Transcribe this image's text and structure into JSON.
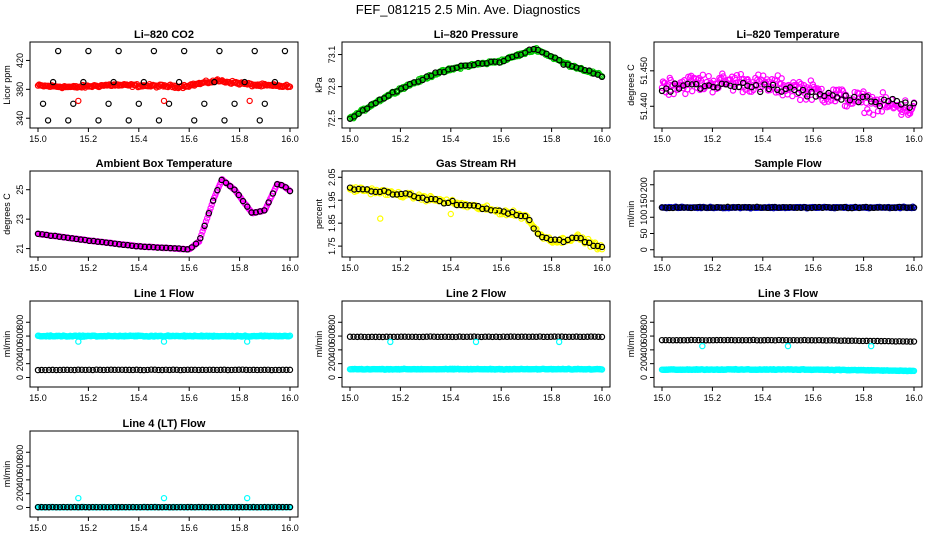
{
  "figure": {
    "title": "FEF_081215  2.5 Min. Ave. Diagnostics"
  },
  "chart_data": [
    {
      "id": "co2",
      "type": "scatter",
      "title": "Li–820 CO2",
      "ylabel": "Licor ppm",
      "xlim": [
        15.0,
        16.0
      ],
      "ylim": [
        332,
        440
      ],
      "xticks": [
        15.0,
        15.2,
        15.4,
        15.6,
        15.8,
        16.0
      ],
      "xtick_labels": [
        "15.0",
        "15.2",
        "15.4",
        "15.6",
        "15.8",
        "16.0"
      ],
      "yticks": [
        340,
        380,
        420
      ],
      "ytick_labels": [
        "340",
        "380",
        "420"
      ],
      "grid": false,
      "series": [
        {
          "color": "#ff0000",
          "style": "band",
          "dense": true,
          "y_from": [
            385,
            383,
            386,
            385,
            384,
            392,
            386,
            384
          ],
          "jitter": 3
        },
        {
          "color": "#000000",
          "style": "points",
          "x": [
            15.08,
            15.2,
            15.32,
            15.46,
            15.58,
            15.72,
            15.86,
            15.98,
            15.06,
            15.18,
            15.3,
            15.42,
            15.56,
            15.7,
            15.82,
            15.94,
            15.02,
            15.14,
            15.28,
            15.4,
            15.52,
            15.66,
            15.78,
            15.9,
            15.04,
            15.12,
            15.24,
            15.36,
            15.48,
            15.62,
            15.74,
            15.88
          ],
          "y": [
            433,
            433,
            433,
            433,
            433,
            433,
            433,
            433,
            390,
            390,
            390,
            390,
            390,
            390,
            390,
            390,
            360,
            360,
            360,
            360,
            360,
            360,
            360,
            360,
            337,
            337,
            337,
            337,
            337,
            337,
            337,
            337
          ]
        },
        {
          "color": "#ff0000",
          "style": "points",
          "x": [
            15.16,
            15.5,
            15.84
          ],
          "y": [
            364,
            364,
            364
          ]
        }
      ]
    },
    {
      "id": "pressure",
      "type": "scatter",
      "title": "Li–820 Pressure",
      "ylabel": "kPa",
      "xlim": [
        15.0,
        16.0
      ],
      "ylim": [
        72.45,
        73.18
      ],
      "xticks": [
        15.0,
        15.2,
        15.4,
        15.6,
        15.8,
        16.0
      ],
      "xtick_labels": [
        "15.0",
        "15.2",
        "15.4",
        "15.6",
        "15.8",
        "16.0"
      ],
      "yticks": [
        72.5,
        72.8,
        73.1
      ],
      "ytick_labels": [
        "72.5",
        "72.8",
        "73.1"
      ],
      "grid": false,
      "series": [
        {
          "color": "#00cc00",
          "style": "band",
          "dense": true,
          "x_knots": [
            15.0,
            15.1,
            15.2,
            15.35,
            15.45,
            15.6,
            15.7,
            15.74,
            15.85,
            16.0
          ],
          "y_knots": [
            72.5,
            72.65,
            72.78,
            72.93,
            72.99,
            73.04,
            73.12,
            73.15,
            73.02,
            72.9
          ],
          "jitter": 0.02
        },
        {
          "color": "#000000",
          "style": "sampled",
          "count": 60,
          "x_knots": [
            15.0,
            15.1,
            15.2,
            15.35,
            15.45,
            15.6,
            15.7,
            15.74,
            15.85,
            16.0
          ],
          "y_knots": [
            72.5,
            72.65,
            72.78,
            72.93,
            72.99,
            73.04,
            73.12,
            73.15,
            73.02,
            72.9
          ],
          "jitter": 0.02
        }
      ]
    },
    {
      "id": "licor_temp",
      "type": "scatter",
      "title": "Li–820 Temperature",
      "ylabel": "degrees C",
      "xlim": [
        15.0,
        16.0
      ],
      "ylim": [
        51.435,
        51.457
      ],
      "xticks": [
        15.0,
        15.2,
        15.4,
        15.6,
        15.8,
        16.0
      ],
      "xtick_labels": [
        "15.0",
        "15.2",
        "15.4",
        "15.6",
        "15.8",
        "16.0"
      ],
      "yticks": [
        51.44,
        51.45
      ],
      "ytick_labels": [
        "51.440",
        "51.450"
      ],
      "grid": false,
      "series": [
        {
          "color": "#ff00ff",
          "style": "band",
          "dense": true,
          "count": 260,
          "x_knots": [
            15.0,
            15.3,
            15.55,
            15.75,
            16.0
          ],
          "y_knots": [
            51.446,
            51.447,
            51.445,
            51.442,
            51.439
          ],
          "jitter": 0.004
        },
        {
          "color": "#000000",
          "style": "sampled",
          "count": 60,
          "x_knots": [
            15.0,
            15.3,
            15.55,
            15.75,
            16.0
          ],
          "y_knots": [
            51.445,
            51.446,
            51.444,
            51.442,
            51.44
          ],
          "jitter": 0.002
        }
      ]
    },
    {
      "id": "box_temp",
      "type": "scatter",
      "title": "Ambient Box Temperature",
      "ylabel": "degrees C",
      "xlim": [
        15.0,
        16.0
      ],
      "ylim": [
        20.7,
        26.0
      ],
      "xticks": [
        15.0,
        15.2,
        15.4,
        15.6,
        15.8,
        16.0
      ],
      "xtick_labels": [
        "15.0",
        "15.2",
        "15.4",
        "15.6",
        "15.8",
        "16.0"
      ],
      "yticks": [
        21,
        23,
        25
      ],
      "ytick_labels": [
        "21",
        "23",
        "25"
      ],
      "grid": false,
      "series": [
        {
          "color": "#ff00ff",
          "style": "band",
          "dense": true,
          "x_knots": [
            15.0,
            15.2,
            15.4,
            15.6,
            15.64,
            15.7,
            15.73,
            15.78,
            15.85,
            15.9,
            15.95,
            15.98,
            16.0
          ],
          "y_knots": [
            22.0,
            21.55,
            21.15,
            20.95,
            21.5,
            24.5,
            25.7,
            25.0,
            23.4,
            23.6,
            25.4,
            25.2,
            24.9
          ],
          "jitter": 0.03
        },
        {
          "color": "#000000",
          "style": "sampled",
          "count": 60,
          "x_knots": [
            15.0,
            15.2,
            15.4,
            15.6,
            15.64,
            15.7,
            15.73,
            15.78,
            15.85,
            15.9,
            15.95,
            15.98,
            16.0
          ],
          "y_knots": [
            22.0,
            21.55,
            21.15,
            20.95,
            21.5,
            24.5,
            25.7,
            25.0,
            23.4,
            23.6,
            25.4,
            25.2,
            24.9
          ],
          "jitter": 0.03
        }
      ]
    },
    {
      "id": "rh",
      "type": "scatter",
      "title": "Gas Stream RH",
      "ylabel": "percent",
      "xlim": [
        15.0,
        16.0
      ],
      "ylim": [
        1.72,
        2.06
      ],
      "xticks": [
        15.0,
        15.2,
        15.4,
        15.6,
        15.8,
        16.0
      ],
      "xtick_labels": [
        "15.0",
        "15.2",
        "15.4",
        "15.6",
        "15.8",
        "16.0"
      ],
      "yticks": [
        1.75,
        1.85,
        1.95,
        2.05
      ],
      "ytick_labels": [
        "1.75",
        "1.85",
        "1.95",
        "2.05"
      ],
      "grid": false,
      "series": [
        {
          "color": "#ffff00",
          "style": "band",
          "dense": true,
          "x_knots": [
            15.0,
            15.1,
            15.3,
            15.5,
            15.7,
            15.75,
            15.82,
            15.9,
            16.0
          ],
          "y_knots": [
            2.0,
            1.99,
            1.96,
            1.92,
            1.88,
            1.8,
            1.77,
            1.79,
            1.74
          ],
          "jitter": 0.018
        },
        {
          "color": "#000000",
          "style": "sampled",
          "count": 60,
          "x_knots": [
            15.0,
            15.1,
            15.3,
            15.5,
            15.7,
            15.75,
            15.82,
            15.9,
            16.0
          ],
          "y_knots": [
            2.0,
            1.99,
            1.96,
            1.92,
            1.88,
            1.8,
            1.77,
            1.79,
            1.74
          ],
          "jitter": 0.012
        },
        {
          "color": "#ffff00",
          "style": "points",
          "x": [
            15.12,
            15.4,
            15.58
          ],
          "y": [
            1.87,
            1.89,
            1.9
          ]
        }
      ]
    },
    {
      "id": "sample_flow",
      "type": "scatter",
      "title": "Sample Flow",
      "ylabel": "ml/min",
      "xlim": [
        15.0,
        16.0
      ],
      "ylim": [
        -10,
        230
      ],
      "xticks": [
        15.0,
        15.2,
        15.4,
        15.6,
        15.8,
        16.0
      ],
      "xtick_labels": [
        "15.0",
        "15.2",
        "15.4",
        "15.6",
        "15.8",
        "16.0"
      ],
      "yticks": [
        0,
        50,
        100,
        150,
        200
      ],
      "ytick_labels": [
        "0",
        "50",
        "100",
        "150",
        "200"
      ],
      "grid": false,
      "series": [
        {
          "color": "#0000cc",
          "style": "band",
          "dense": true,
          "x_knots": [
            15.0,
            16.0
          ],
          "y_knots": [
            130,
            130
          ],
          "jitter": 3
        },
        {
          "color": "#000000",
          "style": "sampled",
          "count": 70,
          "x_knots": [
            15.0,
            16.0
          ],
          "y_knots": [
            130,
            130
          ],
          "jitter": 3
        }
      ]
    },
    {
      "id": "line1",
      "type": "scatter",
      "title": "Line 1 Flow",
      "ylabel": "ml/min",
      "xlim": [
        15.0,
        16.0
      ],
      "ylim": [
        -80,
        1050
      ],
      "xticks": [
        15.0,
        15.2,
        15.4,
        15.6,
        15.8,
        16.0
      ],
      "xtick_labels": [
        "15.0",
        "15.2",
        "15.4",
        "15.6",
        "15.8",
        "16.0"
      ],
      "yticks": [
        0,
        200,
        400,
        600,
        800
      ],
      "ytick_labels": [
        "0",
        "200",
        "400",
        "600",
        "800"
      ],
      "grid": false,
      "series": [
        {
          "color": "#00ffff",
          "style": "band",
          "dense": true,
          "x_knots": [
            15.0,
            16.0
          ],
          "y_knots": [
            600,
            600
          ],
          "jitter": 12
        },
        {
          "color": "#000000",
          "style": "sampled",
          "count": 70,
          "x_knots": [
            15.0,
            16.0
          ],
          "y_knots": [
            110,
            110
          ],
          "jitter": 4
        },
        {
          "color": "#00ffff",
          "style": "points",
          "x": [
            15.16,
            15.5,
            15.83
          ],
          "y": [
            520,
            520,
            520
          ]
        }
      ]
    },
    {
      "id": "line2",
      "type": "scatter",
      "title": "Line 2 Flow",
      "ylabel": "ml/min",
      "xlim": [
        15.0,
        16.0
      ],
      "ylim": [
        -80,
        1050
      ],
      "xticks": [
        15.0,
        15.2,
        15.4,
        15.6,
        15.8,
        16.0
      ],
      "xtick_labels": [
        "15.0",
        "15.2",
        "15.4",
        "15.6",
        "15.8",
        "16.0"
      ],
      "yticks": [
        0,
        200,
        400,
        600,
        800
      ],
      "ytick_labels": [
        "0",
        "200",
        "400",
        "600",
        "800"
      ],
      "grid": false,
      "series": [
        {
          "color": "#00ffff",
          "style": "band",
          "dense": true,
          "x_knots": [
            15.0,
            16.0
          ],
          "y_knots": [
            120,
            120
          ],
          "jitter": 8
        },
        {
          "color": "#000000",
          "style": "sampled",
          "count": 70,
          "x_knots": [
            15.0,
            16.0
          ],
          "y_knots": [
            590,
            590
          ],
          "jitter": 4
        },
        {
          "color": "#00ffff",
          "style": "points",
          "x": [
            15.16,
            15.5,
            15.83
          ],
          "y": [
            515,
            515,
            515
          ]
        }
      ]
    },
    {
      "id": "line3",
      "type": "scatter",
      "title": "Line 3 Flow",
      "ylabel": "ml/min",
      "xlim": [
        15.0,
        16.0
      ],
      "ylim": [
        -80,
        1050
      ],
      "xticks": [
        15.0,
        15.2,
        15.4,
        15.6,
        15.8,
        16.0
      ],
      "xtick_labels": [
        "15.0",
        "15.2",
        "15.4",
        "15.6",
        "15.8",
        "16.0"
      ],
      "yticks": [
        0,
        200,
        400,
        600,
        800
      ],
      "ytick_labels": [
        "0",
        "200",
        "400",
        "600",
        "800"
      ],
      "grid": false,
      "series": [
        {
          "color": "#00ffff",
          "style": "band",
          "dense": true,
          "x_knots": [
            15.0,
            15.6,
            16.0
          ],
          "y_knots": [
            115,
            115,
            95
          ],
          "jitter": 8
        },
        {
          "color": "#000000",
          "style": "sampled",
          "count": 70,
          "x_knots": [
            15.0,
            15.6,
            16.0
          ],
          "y_knots": [
            540,
            540,
            520
          ],
          "jitter": 4
        },
        {
          "color": "#00ffff",
          "style": "points",
          "x": [
            15.16,
            15.5,
            15.83
          ],
          "y": [
            455,
            455,
            455
          ]
        }
      ]
    },
    {
      "id": "line4",
      "type": "scatter",
      "title": "Line 4 (LT) Flow",
      "ylabel": "ml/min",
      "xlim": [
        15.0,
        16.0
      ],
      "ylim": [
        -80,
        1050
      ],
      "xticks": [
        15.0,
        15.2,
        15.4,
        15.6,
        15.8,
        16.0
      ],
      "xtick_labels": [
        "15.0",
        "15.2",
        "15.4",
        "15.6",
        "15.8",
        "16.0"
      ],
      "yticks": [
        0,
        200,
        400,
        600,
        800
      ],
      "ytick_labels": [
        "0",
        "200",
        "400",
        "600",
        "800"
      ],
      "grid": false,
      "series": [
        {
          "color": "#00ffff",
          "style": "band",
          "dense": true,
          "x_knots": [
            15.0,
            16.0
          ],
          "y_knots": [
            5,
            5
          ],
          "jitter": 4
        },
        {
          "color": "#000000",
          "style": "sampled",
          "count": 70,
          "x_knots": [
            15.0,
            16.0
          ],
          "y_knots": [
            5,
            5
          ],
          "jitter": 2
        },
        {
          "color": "#00ffff",
          "style": "points",
          "x": [
            15.16,
            15.5,
            15.83
          ],
          "y": [
            135,
            135,
            135
          ]
        }
      ]
    }
  ]
}
